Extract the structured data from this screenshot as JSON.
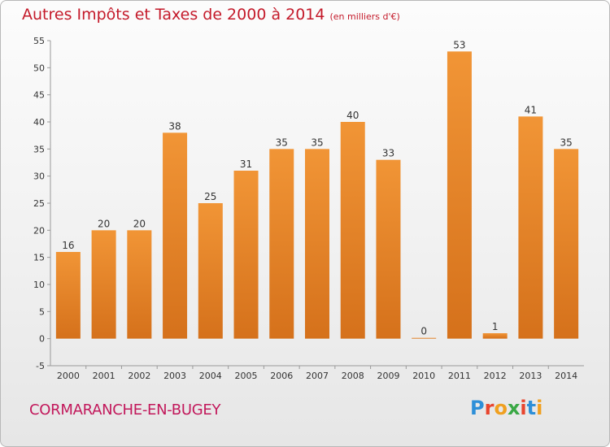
{
  "header": {
    "title": "Autres Impôts et Taxes de 2000 à 2014",
    "unit": "(en milliers d'€)"
  },
  "footer": {
    "commune": "CORMARANCHE-EN-BUGEY",
    "brand_letters": [
      "P",
      "r",
      "o",
      "x",
      "i",
      "t",
      "i"
    ],
    "brand_colors": [
      "#2d8fd8",
      "#e8452e",
      "#f0a020",
      "#3aa845",
      "#e8452e",
      "#2d8fd8",
      "#f0a020"
    ]
  },
  "chart_data": {
    "type": "bar",
    "title": "Autres Impôts et Taxes de 2000 à 2014",
    "subtitle": "(en milliers d'€)",
    "categories": [
      "2000",
      "2001",
      "2002",
      "2003",
      "2004",
      "2005",
      "2006",
      "2007",
      "2008",
      "2009",
      "2010",
      "2011",
      "2012",
      "2013",
      "2014"
    ],
    "values": [
      16,
      20,
      20,
      38,
      25,
      31,
      35,
      35,
      40,
      33,
      0,
      53,
      1,
      41,
      35
    ],
    "ylim": [
      -5,
      55
    ],
    "yticks": [
      -5,
      0,
      5,
      10,
      15,
      20,
      25,
      30,
      35,
      40,
      45,
      50,
      55
    ],
    "grid": false,
    "bar_color": "#f19536",
    "bar_color_dark": "#d5711b"
  }
}
